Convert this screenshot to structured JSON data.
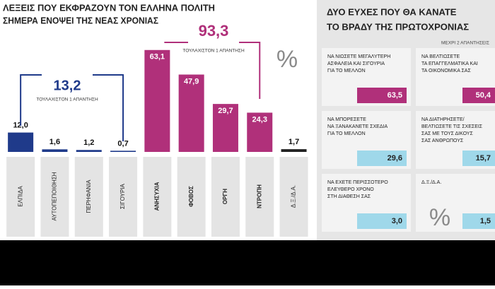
{
  "chart_data": [
    {
      "type": "bar",
      "title": [
        "ΛΕΞΕΙΣ ΠΟΥ ΕΚΦΡΑΖΟΥΝ ΤΟΝ ΕΛΛΗΝΑ ΠΟΛΙΤΗ",
        "ΣΗΜΕΡΑ ΕΝΟΨΕΙ ΤΗΣ ΝΕΑΣ ΧΡΟΝΙΑΣ"
      ],
      "categories": [
        "ΕΛΠΙΔΑ",
        "ΑΥΤΟΠΕΠΟΙΘΗΣΗ",
        "ΠΕΡΗΦΑΝΙΑ",
        "ΣΙΓΟΥΡΙΑ",
        "ΑΝΗΣΥΧΙΑ",
        "ΦΟΒΟΣ",
        "ΟΡΓΗ",
        "ΝΤΡΟΠΗ",
        "Δ.Ξ./Δ.Α."
      ],
      "values": [
        12.0,
        1.6,
        1.2,
        0.7,
        63.1,
        47.9,
        29.7,
        24.3,
        1.7
      ],
      "value_labels": [
        "12,0",
        "1,6",
        "1,2",
        "0,7",
        "63,1",
        "47,9",
        "29,7",
        "24,3",
        "1,7"
      ],
      "colors": [
        "#1f3a8a",
        "#1f3a8a",
        "#1f3a8a",
        "#1f3a8a",
        "#b0307a",
        "#b0307a",
        "#b0307a",
        "#b0307a",
        "#222222"
      ],
      "ylim": [
        0,
        70
      ],
      "groups": [
        {
          "total": "13,2",
          "note": "ΤΟΥΛΑΧΙΣΤΟΝ 1 ΑΠΑΝΤΗΣΗ",
          "color": "#1f3a8a"
        },
        {
          "total": "93,3",
          "note": "ΤΟΥΛΑΧΙΣΤΟΝ 1 ΑΠΑΝΤΗΣΗ",
          "color": "#b0307a"
        }
      ],
      "unit": "%"
    },
    {
      "type": "tiles",
      "title": [
        "ΔΥΟ ΕΥΧΕΣ ΠΟΥ ΘΑ ΚΑΝΑΤΕ",
        "ΤΟ ΒΡΑΔΥ ΤΗΣ ΠΡΩΤΟΧΡΟΝΙΑΣ"
      ],
      "subtitle": "ΜΕΧΡΙ 2 ΑΠΑΝΤΗΣΕΙΣ",
      "categories": [
        [
          "ΝΑ ΝΙΩΣΕΤΕ ΜΕΓΑΛΥΤΕΡΗ",
          "ΑΣΦΑΛΕΙΑ ΚΑΙ ΣΙΓΟΥΡΙΑ",
          "ΓΙΑ ΤΟ ΜΕΛΛΟΝ"
        ],
        [
          "ΝΑ ΒΕΛΤΙΩΣΕΤΕ",
          "ΤΑ ΕΠΑΓΓΕΛΜΑΤΙΚΑ ΚΑΙ",
          "ΤΑ ΟΙΚΟΝΟΜΙΚΑ ΣΑΣ"
        ],
        [
          "ΝΑ ΜΠΟΡΕΣΕΤΕ",
          "ΝΑ ΞΑΝΑΚΑΝΕΤΕ ΣΧΕΔΙΑ",
          "ΓΙΑ ΤΟ ΜΕΛΛΟΝ"
        ],
        [
          "ΝΑ ΔΙΑΤΗΡΗΣΕΤΕ/",
          "ΒΕΛΤΙΩΣΕΤΕ ΤΙΣ ΣΧΕΣΕΙΣ",
          "ΣΑΣ ΜΕ ΤΟΥΣ ΔΙΚΟΥΣ",
          "ΣΑΣ ΑΝΘΡΩΠΟΥΣ"
        ],
        [
          "ΝΑ ΕΧΕΤΕ ΠΕΡΙΣΣΟΤΕΡΟ",
          "ΕΛΕΥΘΕΡΟ ΧΡΟΝΟ",
          "ΣΤΗ ΔΙΑΘΕΣΗ ΣΑΣ"
        ],
        [
          "Δ.Ξ./Δ.Α."
        ]
      ],
      "values": [
        63.5,
        50.4,
        29.6,
        15.7,
        3.0,
        1.5
      ],
      "value_labels": [
        "63,5",
        "50,4",
        "29,6",
        "15,7",
        "3,0",
        "1,5"
      ],
      "colors": [
        "#b0307a",
        "#b0307a",
        "#9fd8ea",
        "#9fd8ea",
        "#9fd8ea",
        "#9fd8ea"
      ],
      "unit": "%"
    }
  ]
}
